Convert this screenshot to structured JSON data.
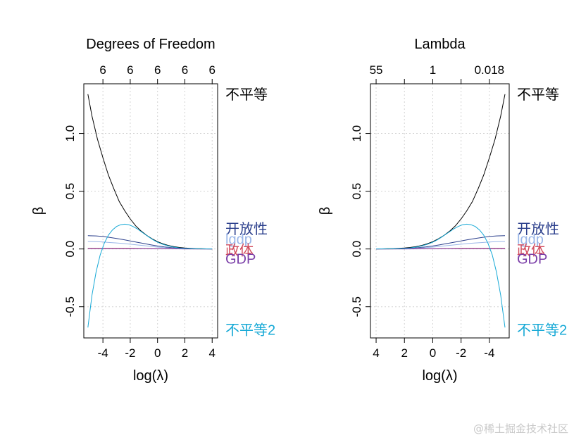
{
  "watermark": "@稀土掘金技术社区",
  "chart_data": [
    {
      "type": "line",
      "title": "Degrees of Freedom",
      "xlabel": "log(λ)",
      "ylabel": "β",
      "xlim": [
        -5.4,
        4.4
      ],
      "ylim": [
        -0.77,
        1.43
      ],
      "x_reversed": false,
      "x_ticks": [
        -4,
        -2,
        0,
        2,
        4
      ],
      "y_ticks": [
        -0.5,
        0.0,
        0.5,
        1.0
      ],
      "top_axis": {
        "ticks": [
          -4,
          -2,
          0,
          2,
          4
        ],
        "labels": [
          "6",
          "6",
          "6",
          "6",
          "6"
        ]
      },
      "grid": true,
      "series": [
        {
          "name": "不平等",
          "color": "#000000",
          "x": [
            -5.1,
            -4.8,
            -4.4,
            -4.0,
            -3.6,
            -3.2,
            -2.8,
            -2.4,
            -2.0,
            -1.6,
            -1.2,
            -0.8,
            -0.4,
            0.0,
            0.4,
            0.8,
            1.2,
            1.6,
            2.0,
            2.4,
            2.8,
            3.2,
            3.6,
            4.0
          ],
          "values": [
            1.34,
            1.15,
            0.95,
            0.79,
            0.64,
            0.52,
            0.41,
            0.33,
            0.26,
            0.2,
            0.155,
            0.118,
            0.088,
            0.063,
            0.044,
            0.03,
            0.02,
            0.013,
            0.008,
            0.005,
            0.003,
            0.002,
            0.001,
            0.0
          ]
        },
        {
          "name": "开放性",
          "color": "#2b3f8c",
          "x": [
            -5.1,
            -4.5,
            -4.0,
            -3.5,
            -3.0,
            -2.5,
            -2.0,
            -1.5,
            -1.0,
            -0.5,
            0.0,
            0.5,
            1.0,
            1.5,
            2.0,
            2.5,
            3.0,
            4.0
          ],
          "values": [
            0.115,
            0.113,
            0.108,
            0.1,
            0.091,
            0.081,
            0.07,
            0.058,
            0.047,
            0.036,
            0.026,
            0.018,
            0.012,
            0.007,
            0.004,
            0.002,
            0.001,
            0.0
          ]
        },
        {
          "name": "lgdp",
          "color": "#9ab6e8",
          "x": [
            -5.1,
            -4.5,
            -4.0,
            -3.5,
            -3.0,
            -2.5,
            -2.0,
            -1.5,
            -1.0,
            -0.5,
            0.0,
            0.5,
            1.0,
            1.5,
            2.0,
            2.5,
            3.0,
            4.0
          ],
          "values": [
            0.065,
            0.063,
            0.06,
            0.056,
            0.052,
            0.047,
            0.041,
            0.035,
            0.029,
            0.022,
            0.016,
            0.011,
            0.007,
            0.004,
            0.002,
            0.001,
            0.0,
            0.0
          ]
        },
        {
          "name": "政体",
          "color": "#d1495b",
          "x": [
            -5.1,
            -4.0,
            -3.0,
            -2.0,
            -1.0,
            0.0,
            1.0,
            2.0,
            3.0,
            4.0
          ],
          "values": [
            0.006,
            0.006,
            0.006,
            0.005,
            0.004,
            0.003,
            0.002,
            0.001,
            0.0,
            0.0
          ]
        },
        {
          "name": "GDP",
          "color": "#7b3fa8",
          "x": [
            -5.1,
            -4.0,
            -3.0,
            -2.0,
            -1.0,
            0.0,
            1.0,
            2.0,
            3.0,
            4.0
          ],
          "values": [
            0.002,
            0.002,
            0.002,
            0.002,
            0.002,
            0.001,
            0.001,
            0.0,
            0.0,
            0.0
          ]
        },
        {
          "name": "不平等2",
          "color": "#17a9d6",
          "x": [
            -5.1,
            -4.8,
            -4.5,
            -4.2,
            -3.9,
            -3.6,
            -3.3,
            -3.0,
            -2.7,
            -2.4,
            -2.1,
            -1.8,
            -1.5,
            -1.2,
            -0.9,
            -0.6,
            -0.3,
            0.0,
            0.4,
            0.8,
            1.2,
            1.6,
            2.0,
            2.5,
            3.0,
            4.0
          ],
          "values": [
            -0.68,
            -0.4,
            -0.2,
            -0.05,
            0.05,
            0.12,
            0.165,
            0.195,
            0.21,
            0.215,
            0.21,
            0.195,
            0.175,
            0.15,
            0.125,
            0.1,
            0.078,
            0.058,
            0.04,
            0.026,
            0.016,
            0.009,
            0.005,
            0.002,
            0.001,
            0.0
          ]
        }
      ],
      "end_labels": [
        {
          "text": "不平等",
          "value": 1.34,
          "color": "#000000"
        },
        {
          "text": "开放性",
          "value": 0.175,
          "color": "#2b3f8c"
        },
        {
          "text": "lgdp",
          "value": 0.085,
          "color": "#9ab6e8"
        },
        {
          "text": "政体",
          "value": -0.01,
          "color": "#d1495b"
        },
        {
          "text": "GDP",
          "value": -0.085,
          "color": "#7b3fa8"
        },
        {
          "text": "不平等2",
          "value": -0.7,
          "color": "#17a9d6"
        }
      ]
    },
    {
      "type": "line",
      "title": "Lambda",
      "xlabel": "log(λ)",
      "ylabel": "β",
      "xlim": [
        4.4,
        -5.4
      ],
      "ylim": [
        -0.77,
        1.43
      ],
      "x_reversed": true,
      "x_ticks": [
        4,
        2,
        0,
        -2,
        -4
      ],
      "y_ticks": [
        -0.5,
        0.0,
        0.5,
        1.0
      ],
      "top_axis": {
        "ticks": [
          4,
          2,
          0,
          -2,
          -4
        ],
        "labels": [
          "55",
          "",
          "1",
          "",
          "0.018"
        ]
      },
      "grid": true,
      "series": [
        {
          "name": "不平等",
          "color": "#000000",
          "x": [
            -5.1,
            -4.8,
            -4.4,
            -4.0,
            -3.6,
            -3.2,
            -2.8,
            -2.4,
            -2.0,
            -1.6,
            -1.2,
            -0.8,
            -0.4,
            0.0,
            0.4,
            0.8,
            1.2,
            1.6,
            2.0,
            2.4,
            2.8,
            3.2,
            3.6,
            4.0
          ],
          "values": [
            1.34,
            1.15,
            0.95,
            0.79,
            0.64,
            0.52,
            0.41,
            0.33,
            0.26,
            0.2,
            0.155,
            0.118,
            0.088,
            0.063,
            0.044,
            0.03,
            0.02,
            0.013,
            0.008,
            0.005,
            0.003,
            0.002,
            0.001,
            0.0
          ]
        },
        {
          "name": "开放性",
          "color": "#2b3f8c",
          "x": [
            -5.1,
            -4.5,
            -4.0,
            -3.5,
            -3.0,
            -2.5,
            -2.0,
            -1.5,
            -1.0,
            -0.5,
            0.0,
            0.5,
            1.0,
            1.5,
            2.0,
            2.5,
            3.0,
            4.0
          ],
          "values": [
            0.115,
            0.113,
            0.108,
            0.1,
            0.091,
            0.081,
            0.07,
            0.058,
            0.047,
            0.036,
            0.026,
            0.018,
            0.012,
            0.007,
            0.004,
            0.002,
            0.001,
            0.0
          ]
        },
        {
          "name": "lgdp",
          "color": "#9ab6e8",
          "x": [
            -5.1,
            -4.5,
            -4.0,
            -3.5,
            -3.0,
            -2.5,
            -2.0,
            -1.5,
            -1.0,
            -0.5,
            0.0,
            0.5,
            1.0,
            1.5,
            2.0,
            2.5,
            3.0,
            4.0
          ],
          "values": [
            0.065,
            0.063,
            0.06,
            0.056,
            0.052,
            0.047,
            0.041,
            0.035,
            0.029,
            0.022,
            0.016,
            0.011,
            0.007,
            0.004,
            0.002,
            0.001,
            0.0,
            0.0
          ]
        },
        {
          "name": "政体",
          "color": "#d1495b",
          "x": [
            -5.1,
            -4.0,
            -3.0,
            -2.0,
            -1.0,
            0.0,
            1.0,
            2.0,
            3.0,
            4.0
          ],
          "values": [
            0.006,
            0.006,
            0.006,
            0.005,
            0.004,
            0.003,
            0.002,
            0.001,
            0.0,
            0.0
          ]
        },
        {
          "name": "GDP",
          "color": "#7b3fa8",
          "x": [
            -5.1,
            -4.0,
            -3.0,
            -2.0,
            -1.0,
            0.0,
            1.0,
            2.0,
            3.0,
            4.0
          ],
          "values": [
            0.002,
            0.002,
            0.002,
            0.002,
            0.002,
            0.001,
            0.001,
            0.0,
            0.0,
            0.0
          ]
        },
        {
          "name": "不平等2",
          "color": "#17a9d6",
          "x": [
            -5.1,
            -4.8,
            -4.5,
            -4.2,
            -3.9,
            -3.6,
            -3.3,
            -3.0,
            -2.7,
            -2.4,
            -2.1,
            -1.8,
            -1.5,
            -1.2,
            -0.9,
            -0.6,
            -0.3,
            0.0,
            0.4,
            0.8,
            1.2,
            1.6,
            2.0,
            2.5,
            3.0,
            4.0
          ],
          "values": [
            -0.68,
            -0.4,
            -0.2,
            -0.05,
            0.05,
            0.12,
            0.165,
            0.195,
            0.21,
            0.215,
            0.21,
            0.195,
            0.175,
            0.15,
            0.125,
            0.1,
            0.078,
            0.058,
            0.04,
            0.026,
            0.016,
            0.009,
            0.005,
            0.002,
            0.001,
            0.0
          ]
        }
      ],
      "end_labels": [
        {
          "text": "不平等",
          "value": 1.34,
          "color": "#000000"
        },
        {
          "text": "开放性",
          "value": 0.175,
          "color": "#2b3f8c"
        },
        {
          "text": "lgdp",
          "value": 0.085,
          "color": "#9ab6e8"
        },
        {
          "text": "政体",
          "value": -0.01,
          "color": "#d1495b"
        },
        {
          "text": "GDP",
          "value": -0.085,
          "color": "#7b3fa8"
        },
        {
          "text": "不平等2",
          "value": -0.7,
          "color": "#17a9d6"
        }
      ]
    }
  ]
}
